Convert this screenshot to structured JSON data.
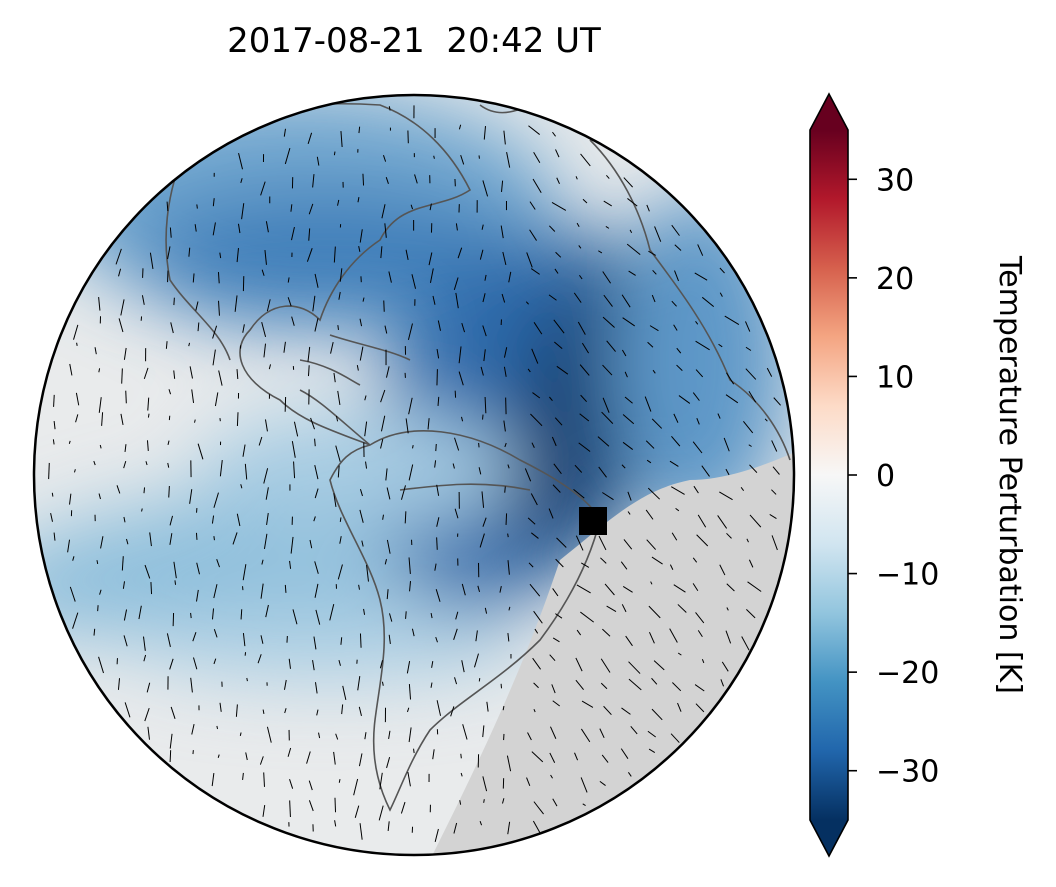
{
  "title": "2017-08-21  20:42 UT",
  "colorbar": {
    "label": "Temperature Perturbation [K]",
    "lim": [
      -35,
      35
    ],
    "ticks": [
      30,
      20,
      10,
      0,
      {
        "value": -10,
        "label": "−10"
      },
      {
        "value": -20,
        "label": "−20"
      },
      {
        "value": -30,
        "label": "−30"
      }
    ]
  }
}
